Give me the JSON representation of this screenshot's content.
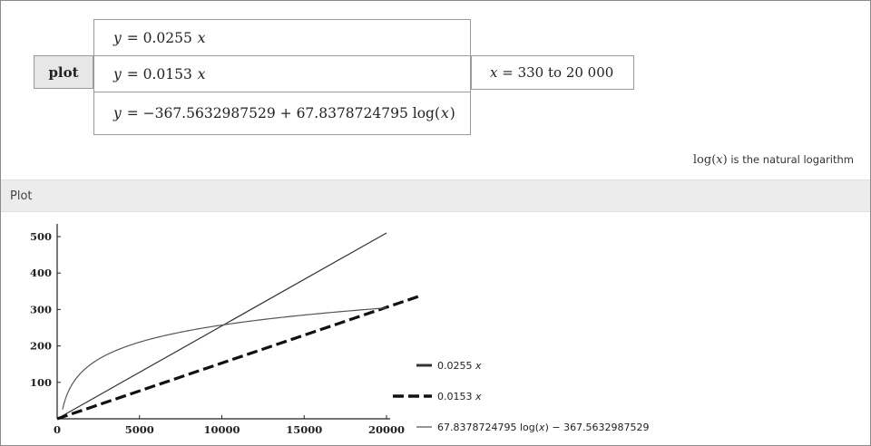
{
  "input": {
    "command_label": "plot",
    "equations": [
      {
        "lhs": "y",
        "op": " = ",
        "rhs": "0.0255",
        "var": "x",
        "tail": ""
      },
      {
        "lhs": "y",
        "op": " = ",
        "rhs": "0.0153",
        "var": "x",
        "tail": ""
      },
      {
        "lhs": "y",
        "op": " = ",
        "rhs": "−367.5632987529 + 67.8378724795 log(",
        "var": "x",
        "tail": ")"
      }
    ],
    "range": {
      "var": "x",
      "op": " = ",
      "from": "330",
      "to_word": " to ",
      "to": "20 000"
    }
  },
  "note": {
    "fn_prefix": "log(",
    "fn_var": "x",
    "fn_suffix": ")",
    "text": " is the natural logarithm"
  },
  "pod": {
    "title": "Plot"
  },
  "chart_data": {
    "type": "line",
    "title": "",
    "xlabel": "",
    "ylabel": "",
    "xlim": [
      0,
      20000
    ],
    "ylim": [
      0,
      520
    ],
    "x_ticks": [
      0,
      5000,
      10000,
      15000,
      20000
    ],
    "x_tick_labels": [
      "0",
      "5000",
      "10000",
      "15000",
      "20000"
    ],
    "y_ticks": [
      100,
      200,
      300,
      400,
      500
    ],
    "y_tick_labels": [
      "100",
      "200",
      "300",
      "400",
      "500"
    ],
    "grid": false,
    "legend_position": "right",
    "series": [
      {
        "name": "0.0255 x",
        "label_text": "0.0255 ",
        "label_var": "x",
        "formula": "linear",
        "slope": 0.0255,
        "x_range": [
          0,
          20000
        ],
        "style": "solid",
        "weight": "thin",
        "color": "#333333"
      },
      {
        "name": "0.0153 x",
        "label_text": "0.0153 ",
        "label_var": "x",
        "formula": "linear",
        "slope": 0.0153,
        "x_range": [
          0,
          22000
        ],
        "style": "dashed",
        "weight": "heavy",
        "color": "#111111"
      },
      {
        "name": "67.8378724795 log(x) − 367.5632987529",
        "label_text": "67.8378724795 log(",
        "label_var": "x",
        "label_tail": ") − 367.5632987529",
        "formula": "log",
        "a": 67.8378724795,
        "b": -367.5632987529,
        "x_range": [
          330,
          20000
        ],
        "style": "solid",
        "weight": "thin",
        "color": "#555555"
      }
    ]
  }
}
